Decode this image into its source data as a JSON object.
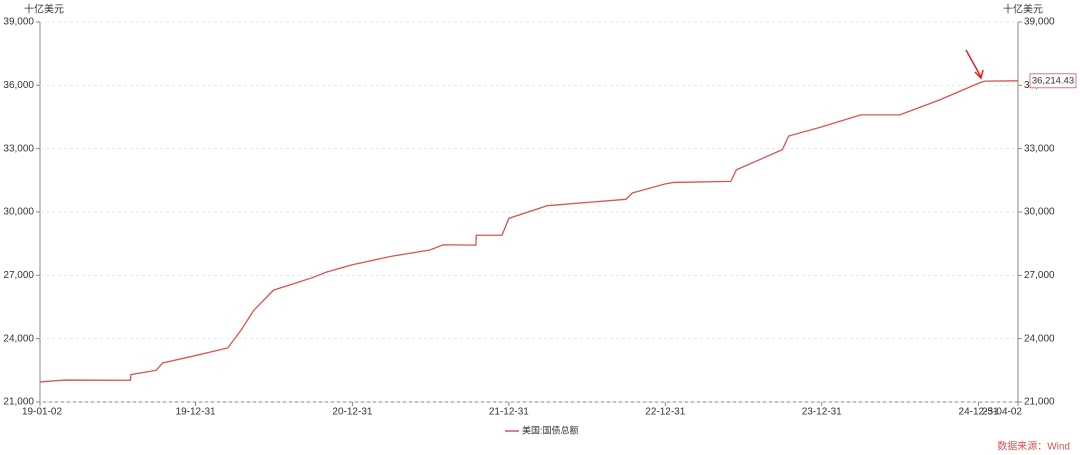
{
  "chart_data": {
    "type": "line",
    "y_unit": "十亿美元",
    "x": [
      "19-01-02",
      "19-03-01",
      "19-08-01",
      "19-08-02",
      "19-09-30",
      "19-10-15",
      "19-12-31",
      "20-03-15",
      "20-04-15",
      "20-05-15",
      "20-06-30",
      "20-07-31",
      "20-09-30",
      "20-10-31",
      "20-12-31",
      "21-03-31",
      "21-06-30",
      "21-07-31",
      "21-10-15",
      "21-10-16",
      "21-12-15",
      "21-12-31",
      "22-03-31",
      "22-06-30",
      "22-09-30",
      "22-10-15",
      "22-12-31",
      "23-01-19",
      "23-06-02",
      "23-06-15",
      "23-09-30",
      "23-10-15",
      "23-12-31",
      "24-03-31",
      "24-06-30",
      "24-09-30",
      "24-12-31",
      "25-01-15",
      "25-04-02"
    ],
    "series": [
      {
        "name": "美国:国债总额",
        "color": "#d9534f",
        "values": [
          21950,
          22040,
          22030,
          22300,
          22500,
          22850,
          23200,
          23560,
          24400,
          25350,
          26300,
          26500,
          26900,
          27150,
          27500,
          27900,
          28200,
          28450,
          28430,
          28900,
          28900,
          29700,
          30300,
          30450,
          30600,
          30900,
          31330,
          31400,
          31450,
          32000,
          32950,
          33600,
          34030,
          34600,
          34600,
          35300,
          36100,
          36200,
          36214.43
        ],
        "value_labels": [
          null,
          null,
          null,
          null,
          null,
          null,
          null,
          null,
          null,
          null,
          null,
          null,
          null,
          null,
          null,
          null,
          null,
          null,
          null,
          null,
          null,
          null,
          null,
          null,
          null,
          null,
          null,
          null,
          null,
          null,
          null,
          null,
          null,
          null,
          null,
          null,
          null,
          null,
          "36,214.43"
        ]
      }
    ],
    "xlim": [
      "19-01-02",
      "25-04-02"
    ],
    "xticks": [
      "19-01-02",
      "19-12-31",
      "20-12-31",
      "21-12-31",
      "22-12-31",
      "23-12-31",
      "24-12-31",
      "25-04-02"
    ],
    "ylim": [
      21000,
      39000
    ],
    "yticks": [
      {
        "value": 21000,
        "label": "21,000"
      },
      {
        "value": 24000,
        "label": "24,000"
      },
      {
        "value": 27000,
        "label": "27,000"
      },
      {
        "value": 30000,
        "label": "30,000"
      },
      {
        "value": 33000,
        "label": "33,000"
      },
      {
        "value": 36000,
        "label": "36,000"
      },
      {
        "value": 39000,
        "label": "39,000"
      }
    ],
    "grid": true,
    "legend": "bottom",
    "source": "数据来源：Wind"
  }
}
